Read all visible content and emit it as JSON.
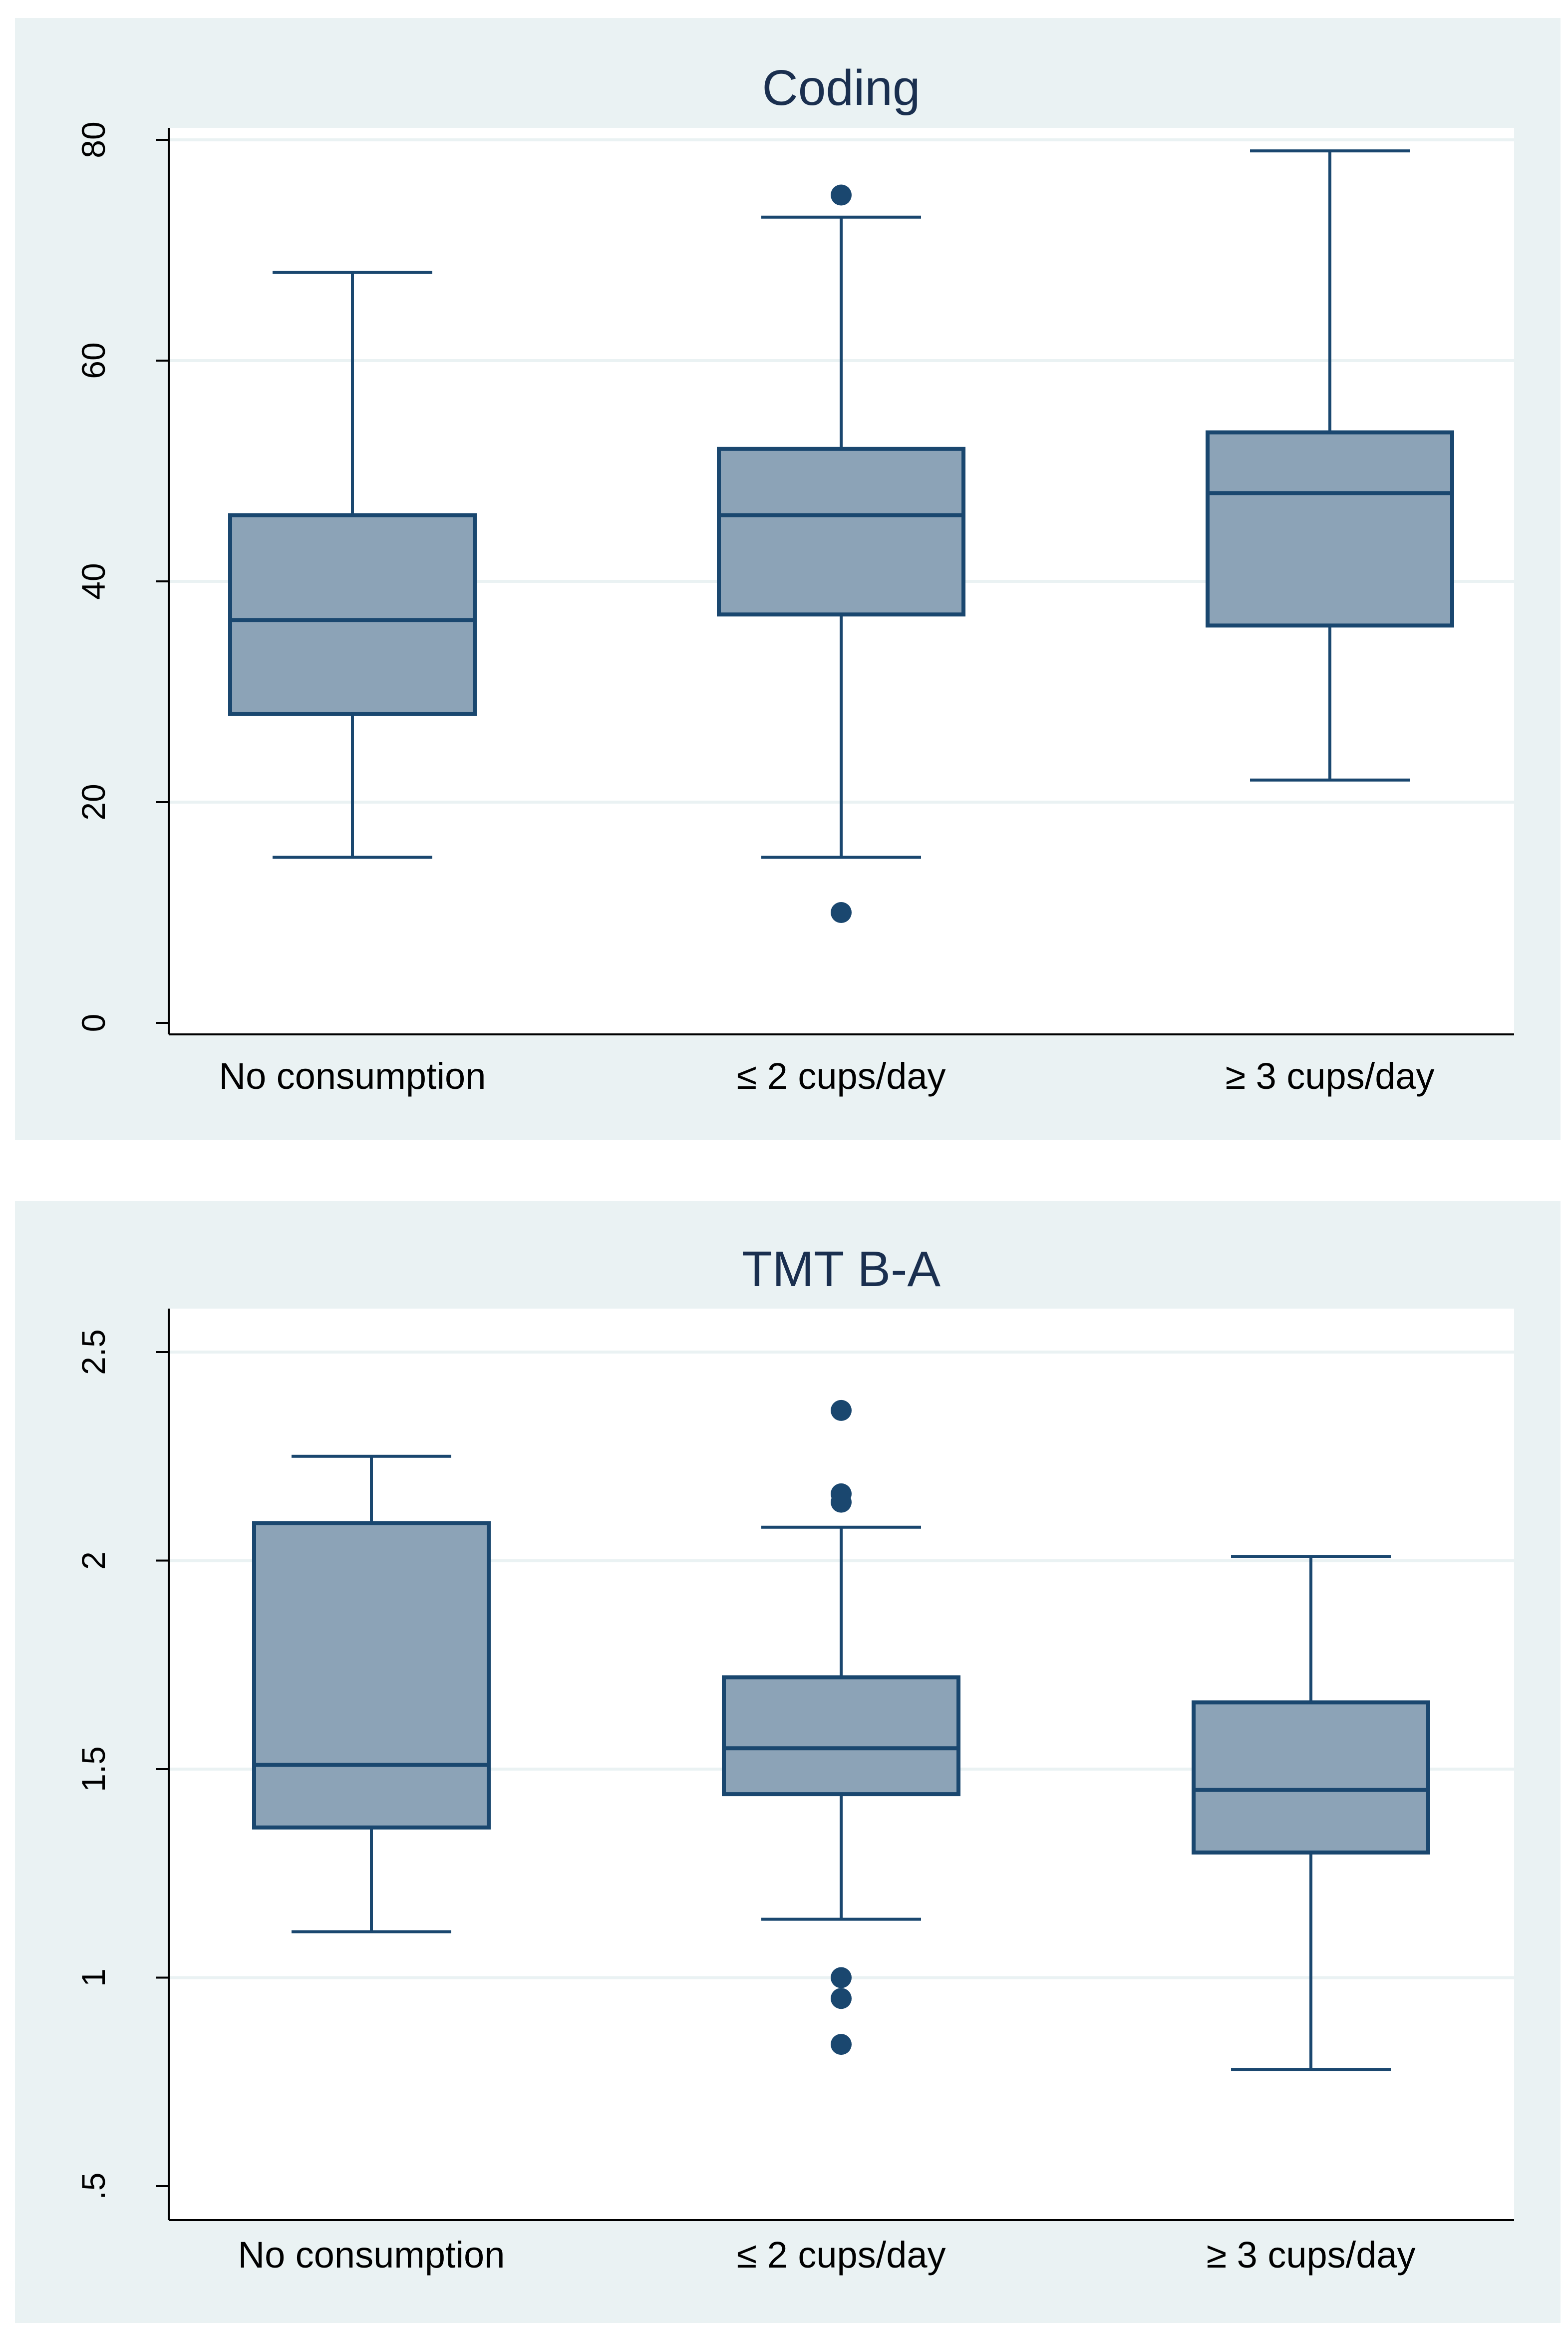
{
  "chart_data": [
    {
      "type": "box",
      "title": "Coding",
      "categories": [
        "No consumption",
        "≤ 2 cups/day",
        "≥ 3 cups/day"
      ],
      "ylim": [
        0,
        80
      ],
      "yticks": [
        0,
        20,
        40,
        60,
        80
      ],
      "ytick_labels": [
        "0",
        "20",
        "40",
        "60",
        "80"
      ],
      "grid": true,
      "boxes": [
        {
          "category": "No consumption",
          "whisker_low": 15,
          "q1": 28,
          "median": 36.5,
          "q3": 46,
          "whisker_high": 68,
          "outliers": []
        },
        {
          "category": "≤ 2 cups/day",
          "whisker_low": 15,
          "q1": 37,
          "median": 46,
          "q3": 52,
          "whisker_high": 73,
          "outliers": [
            75,
            10
          ]
        },
        {
          "category": "≥ 3 cups/day",
          "whisker_low": 22,
          "q1": 36,
          "median": 48,
          "q3": 53.5,
          "whisker_high": 79,
          "outliers": []
        }
      ]
    },
    {
      "type": "box",
      "title": "TMT B-A",
      "categories": [
        "No consumption",
        "≤ 2 cups/day",
        "≥ 3 cups/day"
      ],
      "ylim": [
        0.5,
        2.5
      ],
      "yticks": [
        0.5,
        1,
        1.5,
        2,
        2.5
      ],
      "ytick_labels": [
        ".5",
        "1",
        "1.5",
        "2",
        "2.5"
      ],
      "grid": true,
      "boxes": [
        {
          "category": "No consumption",
          "whisker_low": 1.11,
          "q1": 1.36,
          "median": 1.51,
          "q3": 2.09,
          "whisker_high": 2.25,
          "outliers": []
        },
        {
          "category": "≤ 2 cups/day",
          "whisker_low": 1.14,
          "q1": 1.44,
          "median": 1.55,
          "q3": 1.72,
          "whisker_high": 2.08,
          "outliers": [
            2.36,
            2.16,
            2.14,
            1.0,
            0.95,
            0.84
          ]
        },
        {
          "category": "≥ 3 cups/day",
          "whisker_low": 0.78,
          "q1": 1.3,
          "median": 1.45,
          "q3": 1.66,
          "whisker_high": 2.01,
          "outliers": []
        }
      ]
    }
  ]
}
